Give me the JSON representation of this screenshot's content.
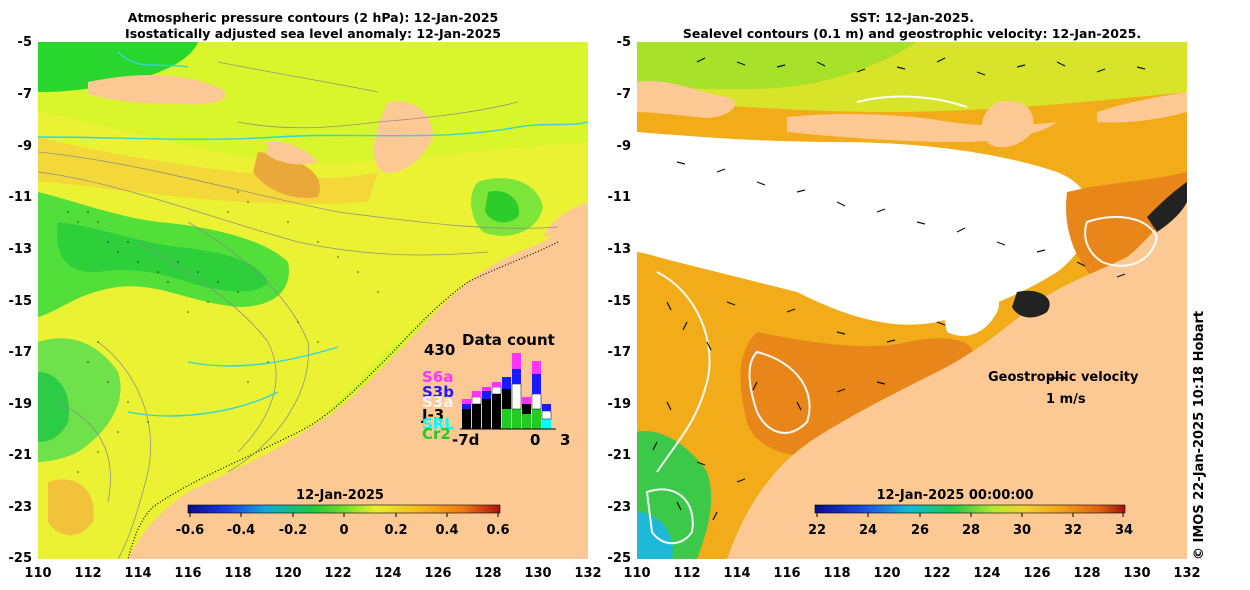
{
  "left_panel": {
    "title_line1": "Atmospheric pressure contours (2 hPa): 12-Jan-2025",
    "title_line2": "Isostatically adjusted sea level anomaly: 12-Jan-2025",
    "colorbar": {
      "title": "12-Jan-2025",
      "ticks": [
        "-0.6",
        "-0.4",
        "-0.2",
        "0",
        "0.2",
        "0.4",
        "0.6"
      ],
      "range": [
        -0.6,
        0.6
      ]
    },
    "data_count": {
      "title": "Data count",
      "max_label": "430",
      "x_start": "-7d",
      "x_zero": "0",
      "x_end": "3",
      "satellites": [
        {
          "name": "S6a",
          "color": "#ff33ff"
        },
        {
          "name": "S3b",
          "color": "#1a1aff"
        },
        {
          "name": "S3a",
          "color": "#f5f5f5"
        },
        {
          "name": "J-3",
          "color": "#000000"
        },
        {
          "name": "SRL",
          "color": "#00ffff"
        },
        {
          "name": "Cr2",
          "color": "#22cc22"
        }
      ]
    }
  },
  "right_panel": {
    "title_line1": "SST: 12-Jan-2025.",
    "title_line2": "Sealevel contours (0.1 m) and geostrophic velocity: 12-Jan-2025.",
    "colorbar": {
      "title": "12-Jan-2025 00:00:00",
      "ticks": [
        "22",
        "24",
        "26",
        "28",
        "30",
        "32",
        "34"
      ],
      "range": [
        22,
        34
      ]
    },
    "velocity_label": "Geostrophic velocity",
    "velocity_scale": "1 m/s"
  },
  "axes": {
    "lat_labels": [
      "-5",
      "-7",
      "-9",
      "-11",
      "-13",
      "-15",
      "-17",
      "-19",
      "-21",
      "-23",
      "-25"
    ],
    "lon_labels": [
      "110",
      "112",
      "114",
      "116",
      "118",
      "120",
      "122",
      "124",
      "126",
      "128",
      "130",
      "132"
    ]
  },
  "credit": "© IMOS 22-Jan-2025 10:18 Hobart",
  "colors": {
    "land": "#fcc995",
    "ocean_ssh_base": "#d9f52c",
    "ocean_sst_base": "#f2ac1a"
  }
}
